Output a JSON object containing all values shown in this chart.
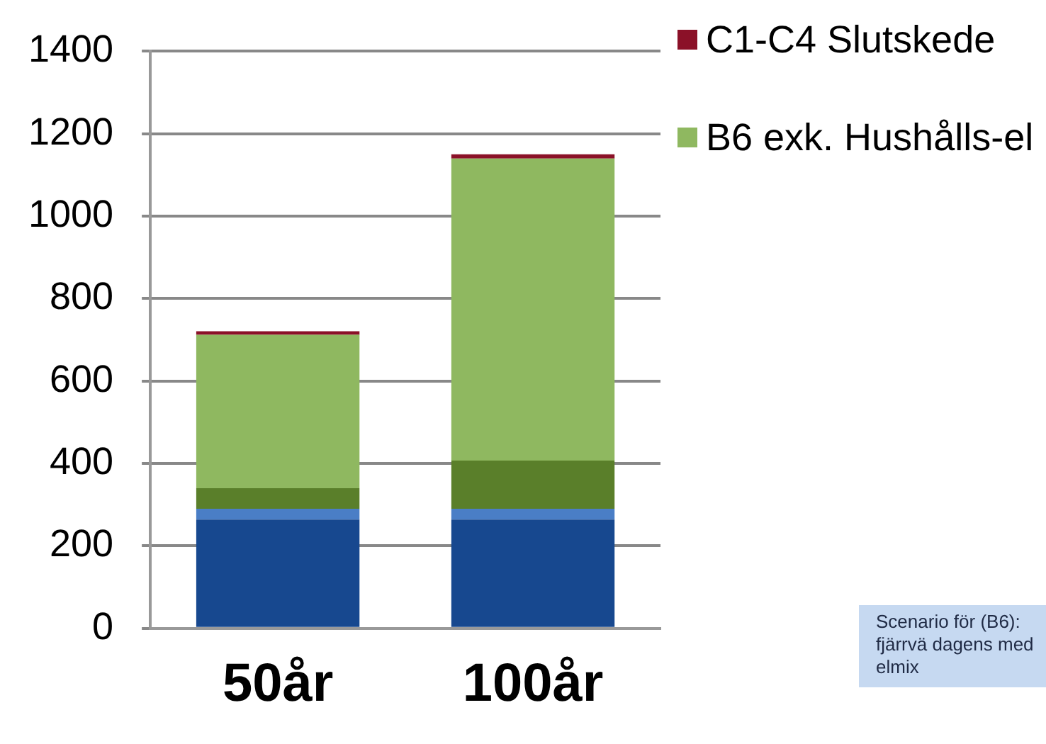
{
  "chart_data": {
    "type": "bar",
    "stacked": true,
    "categories": [
      "50år",
      "100år"
    ],
    "series": [
      {
        "color": "#17488f",
        "values": [
          264,
          264
        ]
      },
      {
        "color": "#4a7ec6",
        "values": [
          26,
          26
        ]
      },
      {
        "color": "#5a7f2a",
        "values": [
          50,
          117
        ]
      },
      {
        "name": "B6 exk. Hushålls-el",
        "color": "#8fb860",
        "values": [
          372,
          733
        ]
      },
      {
        "name": "C1-C4 Slutskede",
        "color": "#8b1128",
        "values": [
          9,
          10
        ]
      }
    ],
    "ylim": [
      0,
      1400
    ],
    "yticks": [
      0,
      200,
      400,
      600,
      800,
      1000,
      1200,
      1400
    ],
    "grid": "y",
    "legend": "right",
    "annotations": [
      "Scenario för (B6): fjärrvä dagens med elmix"
    ]
  }
}
